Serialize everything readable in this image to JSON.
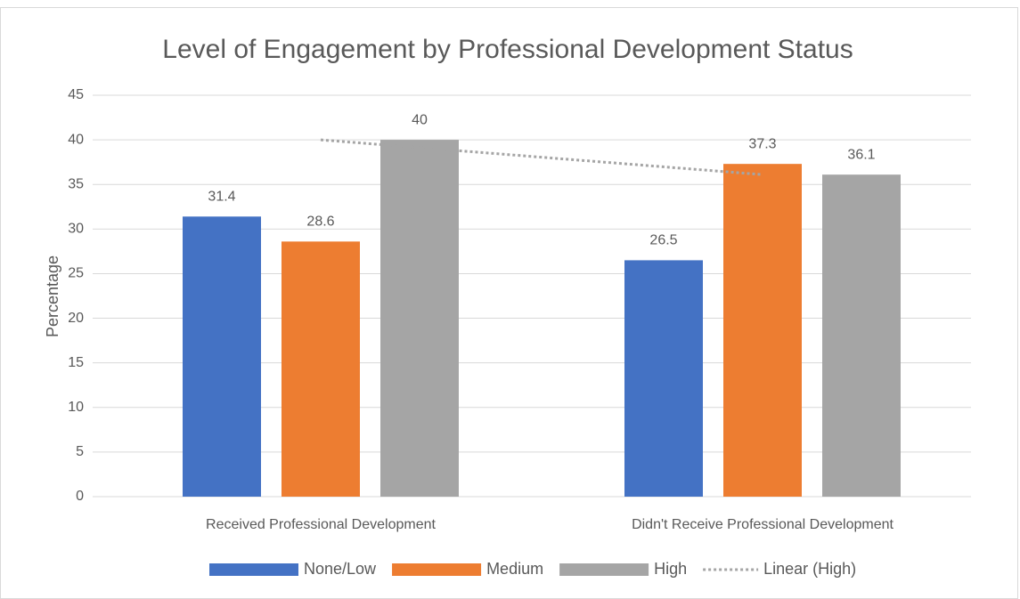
{
  "chart_data": {
    "type": "bar",
    "title": "Level of Engagement by Professional Development Status",
    "y_label": "Percentage",
    "categories": [
      "Received Professional Development",
      "Didn't Receive Professional Development"
    ],
    "series": [
      {
        "name": "None/Low",
        "color": "#4472c4",
        "values": [
          31.4,
          26.5
        ]
      },
      {
        "name": "Medium",
        "color": "#ed7d31",
        "values": [
          28.6,
          37.3
        ]
      },
      {
        "name": "High",
        "color": "#a5a5a5",
        "values": [
          40,
          36.1
        ]
      }
    ],
    "trendline": {
      "series": 2,
      "name": "Linear (High)",
      "color": "#a5a5a5",
      "style": "dotted"
    },
    "ylim": [
      0,
      45
    ],
    "yticks": [
      0,
      5,
      10,
      15,
      20,
      25,
      30,
      35,
      40,
      45
    ],
    "grid": true,
    "legend": "bottom",
    "value_labels_shown": true
  }
}
